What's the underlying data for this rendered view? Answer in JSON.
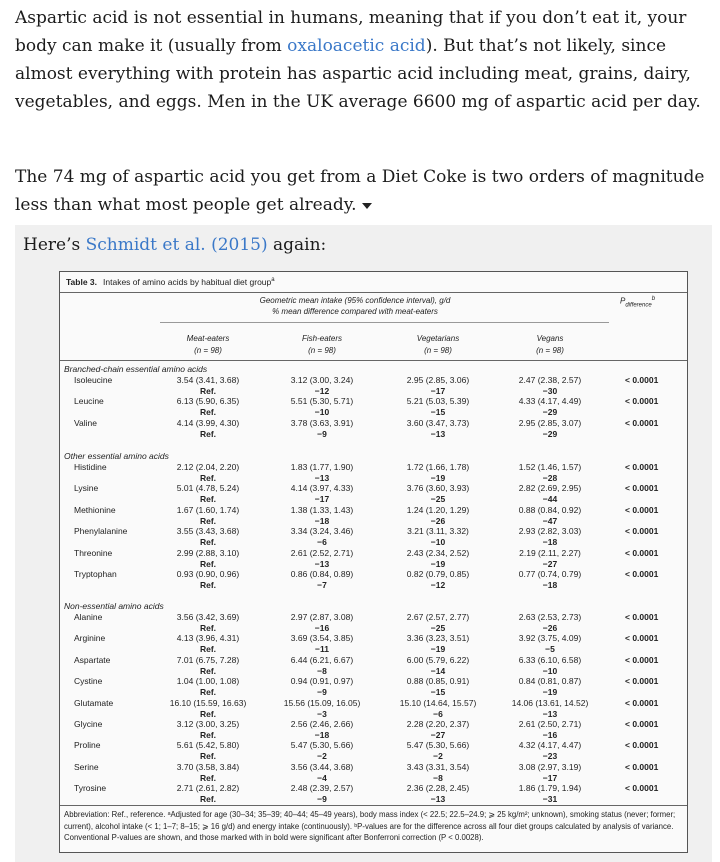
{
  "article": {
    "p1_text_a": "Aspartic acid is not essential in humans, meaning that if you don’t eat it, your body can make it (usually from ",
    "p1_link": "oxaloacetic acid",
    "p1_text_b": "). But that’s not likely, since almost everything with protein has aspartic acid including meat, grains, dairy, vegetables, and eggs. Men in the UK average 6600 mg of aspartic acid per day.",
    "p2_text": "The 74 mg of aspartic acid you get from a Diet Coke is two orders of magnitude less than what most people get already.",
    "quote_intro_a": "Here’s ",
    "quote_link": "Schmidt et al. (2015)",
    "quote_intro_b": " again:"
  },
  "table": {
    "label": "Table 3.",
    "caption": "Intakes of amino acids by habitual diet group",
    "caption_sup": "a",
    "subtitle_line1": "Geometric mean intake (95% confidence interval), g/d",
    "subtitle_line2": "% mean difference compared with meat-eaters",
    "p_header": "P",
    "p_header_sub": "difference",
    "p_header_sup": "b",
    "columns": [
      {
        "name": "Meat-eaters",
        "n": "(n = 98)"
      },
      {
        "name": "Fish-eaters",
        "n": "(n = 98)"
      },
      {
        "name": "Vegetarians",
        "n": "(n = 98)"
      },
      {
        "name": "Vegans",
        "n": "(n = 98)"
      }
    ],
    "groups": [
      {
        "title": "Branched-chain essential amino acids",
        "rows": [
          {
            "name": "Isoleucine",
            "v": [
              "3.54 (3.41, 3.68)",
              "3.12 (3.00, 3.24)",
              "2.95 (2.85, 3.06)",
              "2.47 (2.38, 2.57)"
            ],
            "d": [
              "Ref.",
              "−12",
              "−17",
              "−30"
            ],
            "p": "< 0.0001"
          },
          {
            "name": "Leucine",
            "v": [
              "6.13 (5.90, 6.35)",
              "5.51 (5.30, 5.71)",
              "5.21 (5.03, 5.39)",
              "4.33 (4.17, 4.49)"
            ],
            "d": [
              "Ref.",
              "−10",
              "−15",
              "−29"
            ],
            "p": "< 0.0001"
          },
          {
            "name": "Valine",
            "v": [
              "4.14 (3.99, 4.30)",
              "3.78 (3.63, 3.91)",
              "3.60 (3.47, 3.73)",
              "2.95 (2.85, 3.07)"
            ],
            "d": [
              "Ref.",
              "−9",
              "−13",
              "−29"
            ],
            "p": "< 0.0001"
          }
        ]
      },
      {
        "title": "Other essential amino acids",
        "rows": [
          {
            "name": "Histidine",
            "v": [
              "2.12 (2.04, 2.20)",
              "1.83 (1.77, 1.90)",
              "1.72 (1.66, 1.78)",
              "1.52 (1.46, 1.57)"
            ],
            "d": [
              "Ref.",
              "−13",
              "−19",
              "−28"
            ],
            "p": "< 0.0001"
          },
          {
            "name": "Lysine",
            "v": [
              "5.01 (4.78, 5.24)",
              "4.14 (3.97, 4.33)",
              "3.76 (3.60, 3.93)",
              "2.82 (2.69, 2.95)"
            ],
            "d": [
              "Ref.",
              "−17",
              "−25",
              "−44"
            ],
            "p": "< 0.0001"
          },
          {
            "name": "Methionine",
            "v": [
              "1.67 (1.60, 1.74)",
              "1.38 (1.33, 1.43)",
              "1.24 (1.20, 1.29)",
              "0.88 (0.84, 0.92)"
            ],
            "d": [
              "Ref.",
              "−18",
              "−26",
              "−47"
            ],
            "p": "< 0.0001"
          },
          {
            "name": "Phenylalanine",
            "v": [
              "3.55 (3.43, 3.68)",
              "3.34 (3.24, 3.46)",
              "3.21 (3.11, 3.32)",
              "2.93 (2.82, 3.03)"
            ],
            "d": [
              "Ref.",
              "−6",
              "−10",
              "−18"
            ],
            "p": "< 0.0001"
          },
          {
            "name": "Threonine",
            "v": [
              "2.99 (2.88, 3.10)",
              "2.61 (2.52, 2.71)",
              "2.43 (2.34, 2.52)",
              "2.19 (2.11, 2.27)"
            ],
            "d": [
              "Ref.",
              "−13",
              "−19",
              "−27"
            ],
            "p": "< 0.0001"
          },
          {
            "name": "Tryptophan",
            "v": [
              "0.93 (0.90, 0.96)",
              "0.86 (0.84, 0.89)",
              "0.82 (0.79, 0.85)",
              "0.77 (0.74, 0.79)"
            ],
            "d": [
              "Ref.",
              "−7",
              "−12",
              "−18"
            ],
            "p": "< 0.0001"
          }
        ]
      },
      {
        "title": "Non-essential amino acids",
        "rows": [
          {
            "name": "Alanine",
            "v": [
              "3.56 (3.42, 3.69)",
              "2.97 (2.87, 3.08)",
              "2.67 (2.57, 2.77)",
              "2.63 (2.53, 2.73)"
            ],
            "d": [
              "Ref.",
              "−16",
              "−25",
              "−26"
            ],
            "p": "< 0.0001"
          },
          {
            "name": "Arginine",
            "v": [
              "4.13 (3.96, 4.31)",
              "3.69 (3.54, 3.85)",
              "3.36 (3.23, 3.51)",
              "3.92 (3.75, 4.09)"
            ],
            "d": [
              "Ref.",
              "−11",
              "−19",
              "−5"
            ],
            "p": "< 0.0001"
          },
          {
            "name": "Aspartate",
            "v": [
              "7.01 (6.75, 7.28)",
              "6.44 (6.21, 6.67)",
              "6.00 (5.79, 6.22)",
              "6.33 (6.10, 6.58)"
            ],
            "d": [
              "Ref.",
              "−8",
              "−14",
              "−10"
            ],
            "p": "< 0.0001"
          },
          {
            "name": "Cystine",
            "v": [
              "1.04 (1.00, 1.08)",
              "0.94 (0.91, 0.97)",
              "0.88 (0.85, 0.91)",
              "0.84 (0.81, 0.87)"
            ],
            "d": [
              "Ref.",
              "−9",
              "−15",
              "−19"
            ],
            "p": "< 0.0001"
          },
          {
            "name": "Glutamate",
            "v": [
              "16.10 (15.59, 16.63)",
              "15.56 (15.09, 16.05)",
              "15.10 (14.64, 15.57)",
              "14.06 (13.61, 14.52)"
            ],
            "d": [
              "Ref.",
              "−3",
              "−6",
              "−13"
            ],
            "p": "< 0.0001"
          },
          {
            "name": "Glycine",
            "v": [
              "3.12 (3.00, 3.25)",
              "2.56 (2.46, 2.66)",
              "2.28 (2.20, 2.37)",
              "2.61 (2.50, 2.71)"
            ],
            "d": [
              "Ref.",
              "−18",
              "−27",
              "−16"
            ],
            "p": "< 0.0001"
          },
          {
            "name": "Proline",
            "v": [
              "5.61 (5.42, 5.80)",
              "5.47 (5.30, 5.66)",
              "5.47 (5.30, 5.66)",
              "4.32 (4.17, 4.47)"
            ],
            "d": [
              "Ref.",
              "−2",
              "−2",
              "−23"
            ],
            "p": "< 0.0001"
          },
          {
            "name": "Serine",
            "v": [
              "3.70 (3.58, 3.84)",
              "3.56 (3.44, 3.68)",
              "3.43 (3.31, 3.54)",
              "3.08 (2.97, 3.19)"
            ],
            "d": [
              "Ref.",
              "−4",
              "−8",
              "−17"
            ],
            "p": "< 0.0001"
          },
          {
            "name": "Tyrosine",
            "v": [
              "2.71 (2.61, 2.82)",
              "2.48 (2.39, 2.57)",
              "2.36 (2.28, 2.45)",
              "1.86 (1.79, 1.94)"
            ],
            "d": [
              "Ref.",
              "−9",
              "−13",
              "−31"
            ],
            "p": "< 0.0001"
          }
        ]
      }
    ],
    "footnote": "Abbreviation: Ref., reference. ᵃAdjusted for age (30–34; 35–39; 40–44; 45–49 years), body mass index (< 22.5; 22.5–24.9; ⩾ 25 kg/m²; unknown), smoking status (never; former; current), alcohol intake (< 1; 1–7; 8–15; ⩾ 16 g/d) and energy intake (continuously). ᵇP-values are for the difference across all four diet groups calculated by analysis of variance. Conventional P-values are shown, and those marked with in bold were significant after Bonferroni correction (P < 0.0028)."
  }
}
